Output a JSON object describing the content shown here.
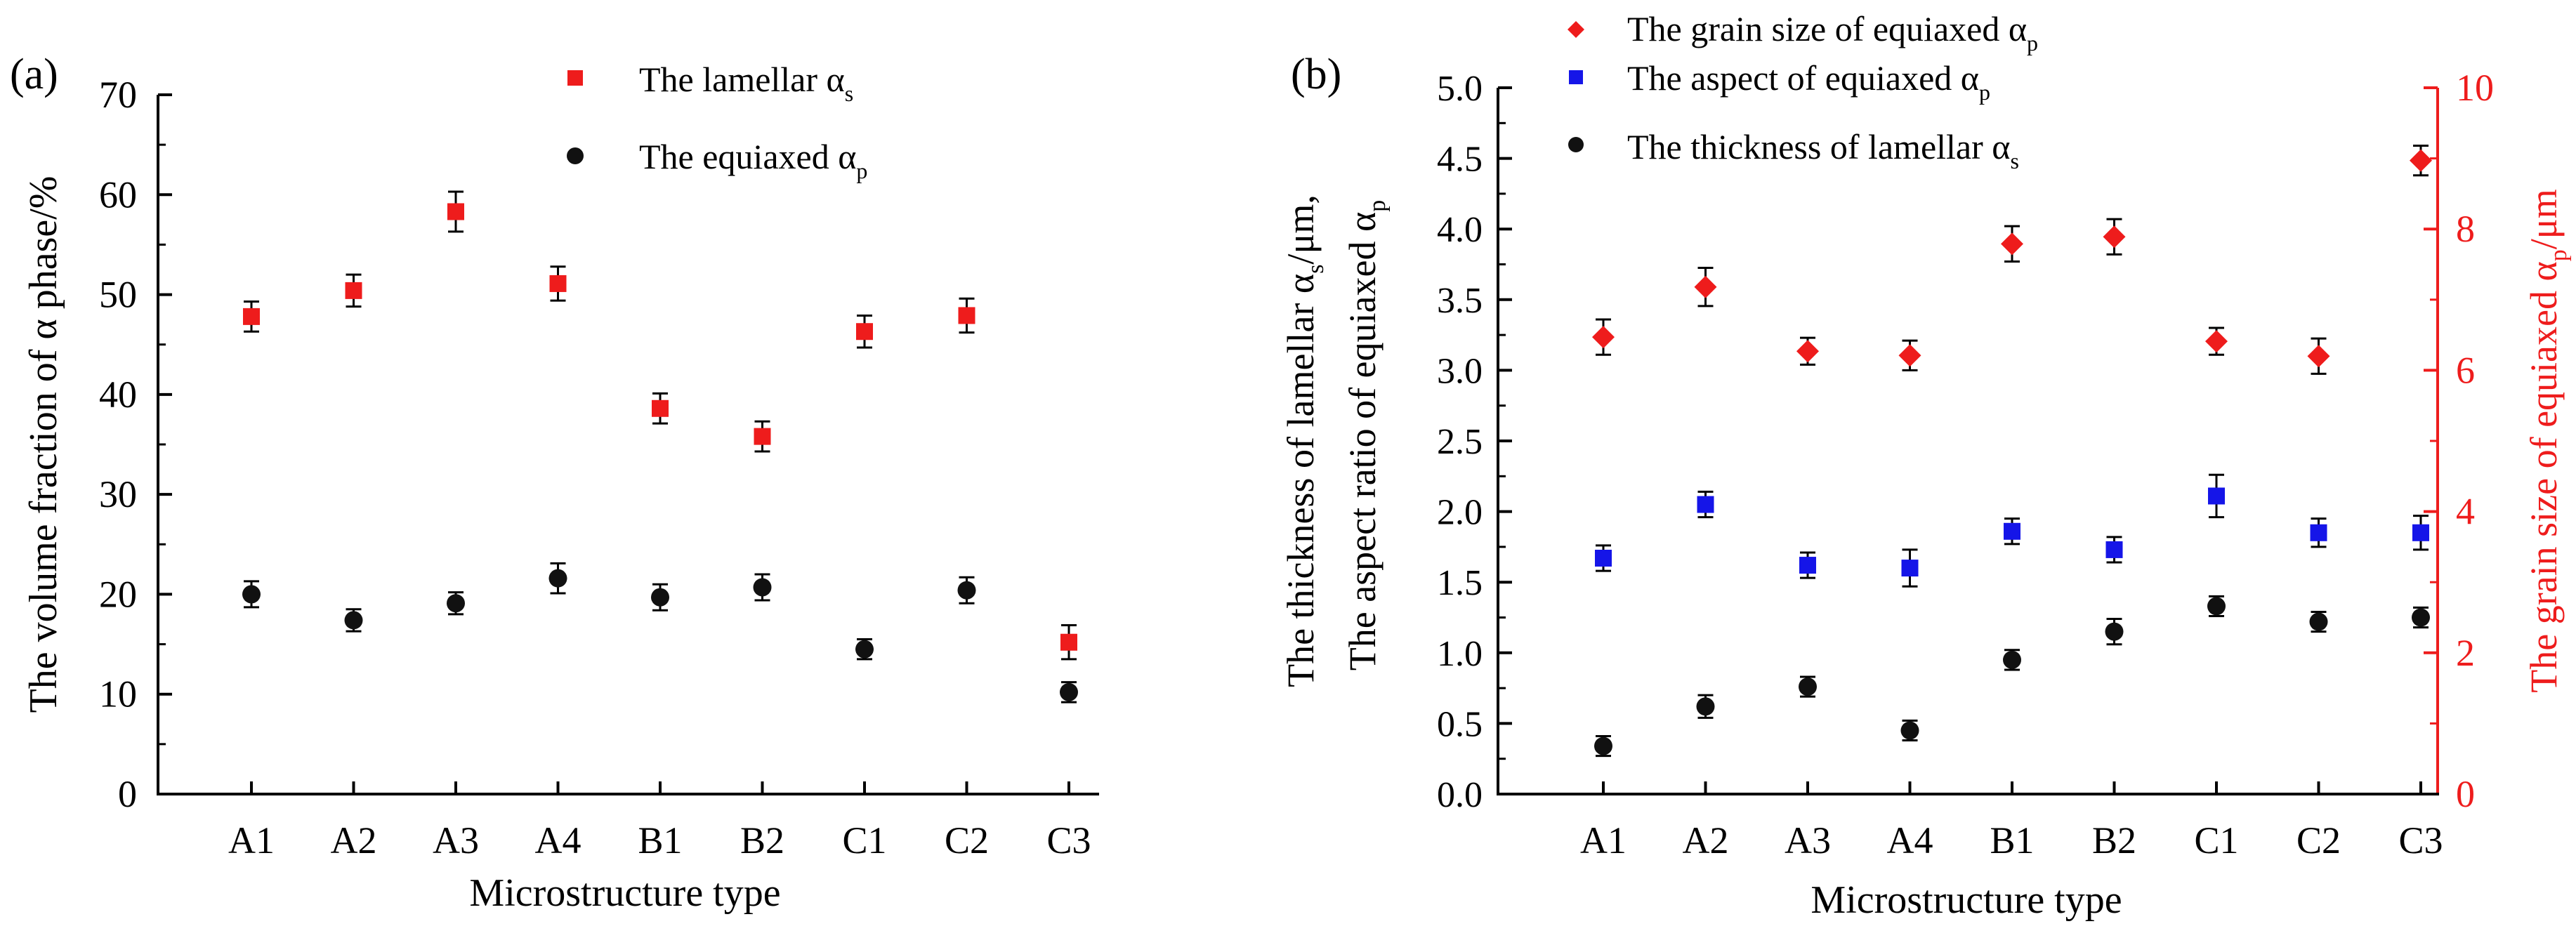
{
  "colors": {
    "red": "#ee1c1c",
    "blue": "#1515e8",
    "black": "#111111",
    "axis": "#000000"
  },
  "chart_data": [
    {
      "panel_label": "(a)",
      "type": "scatter",
      "categories": [
        "A1",
        "A2",
        "A3",
        "A4",
        "B1",
        "B2",
        "C1",
        "C2",
        "C3"
      ],
      "xlabel": "Microstructure type",
      "ylabel": "The volume fraction of α phase/%",
      "ylim": [
        0,
        70
      ],
      "yticks": [
        0,
        10,
        20,
        30,
        40,
        50,
        60,
        70
      ],
      "legend": {
        "position": "top-center",
        "entries": [
          {
            "label_main": "The lamellar  α",
            "label_sub": "s",
            "series": "lamellar"
          },
          {
            "label_main": "The equiaxed α",
            "label_sub": "p",
            "series": "equiaxed"
          }
        ]
      },
      "series": [
        {
          "name": "The lamellar α_s",
          "marker": "square",
          "color": "red",
          "values": [
            47.8,
            50.4,
            58.3,
            51.1,
            38.6,
            35.8,
            46.3,
            47.9,
            15.2
          ],
          "errors": [
            1.5,
            1.6,
            2.0,
            1.7,
            1.5,
            1.5,
            1.6,
            1.7,
            1.7
          ]
        },
        {
          "name": "The equiaxed α_p",
          "marker": "circle",
          "color": "black",
          "values": [
            20.0,
            17.4,
            19.1,
            21.6,
            19.7,
            20.7,
            14.5,
            20.4,
            10.2
          ],
          "errors": [
            1.3,
            1.1,
            1.1,
            1.5,
            1.3,
            1.3,
            1.0,
            1.3,
            1.0
          ]
        }
      ]
    },
    {
      "panel_label": "(b)",
      "type": "scatter",
      "categories": [
        "A1",
        "A2",
        "A3",
        "A4",
        "B1",
        "B2",
        "C1",
        "C2",
        "C3"
      ],
      "xlabel": "Microstructure type",
      "ylabel_left_line1_main": "The thickness of lamellar α",
      "ylabel_left_line1_sub": "s",
      "ylabel_left_line1_tail": "/μm,",
      "ylabel_left_line2_main": "The aspect ratio of equiaxed α",
      "ylabel_left_line2_sub": "p",
      "ylabel_right_main": "The grain size of equiaxed α",
      "ylabel_right_sub": "p",
      "ylabel_right_tail": "/μm",
      "ylim_left": [
        0,
        5
      ],
      "yticks_left": [
        "0.0",
        "0.5",
        "1.0",
        "1.5",
        "2.0",
        "2.5",
        "3.0",
        "3.5",
        "4.0",
        "4.5",
        "5.0"
      ],
      "ylim_right": [
        0,
        10
      ],
      "yticks_right": [
        "0",
        "2",
        "4",
        "6",
        "8",
        "10"
      ],
      "legend": {
        "position": "top-center",
        "entries": [
          {
            "label_main": "The grain size of equiaxed α",
            "label_sub": "p",
            "series": "grain"
          },
          {
            "label_main": "The aspect of equiaxed α",
            "label_sub": "p",
            "series": "aspect"
          },
          {
            "label_main": "The thickness of lamellar α",
            "label_sub": "s",
            "series": "thickness"
          }
        ]
      },
      "series": [
        {
          "name": "The grain size of equiaxed α_p",
          "axis": "right",
          "marker": "diamond",
          "color": "red",
          "values": [
            6.47,
            7.18,
            6.27,
            6.21,
            7.79,
            7.89,
            6.41,
            6.2,
            8.97
          ],
          "errors": [
            0.25,
            0.27,
            0.19,
            0.21,
            0.25,
            0.25,
            0.19,
            0.25,
            0.21
          ]
        },
        {
          "name": "The aspect of equiaxed α_p",
          "axis": "left",
          "marker": "square",
          "color": "blue",
          "values": [
            1.67,
            2.05,
            1.62,
            1.6,
            1.86,
            1.73,
            2.11,
            1.85,
            1.85
          ],
          "errors": [
            0.09,
            0.09,
            0.09,
            0.13,
            0.09,
            0.09,
            0.15,
            0.1,
            0.12
          ]
        },
        {
          "name": "The thickness of lamellar α_s",
          "axis": "left",
          "marker": "circle",
          "color": "black",
          "values": [
            0.34,
            0.62,
            0.76,
            0.45,
            0.95,
            1.15,
            1.33,
            1.22,
            1.25
          ],
          "errors": [
            0.07,
            0.08,
            0.07,
            0.07,
            0.07,
            0.09,
            0.07,
            0.07,
            0.07
          ]
        }
      ]
    }
  ]
}
